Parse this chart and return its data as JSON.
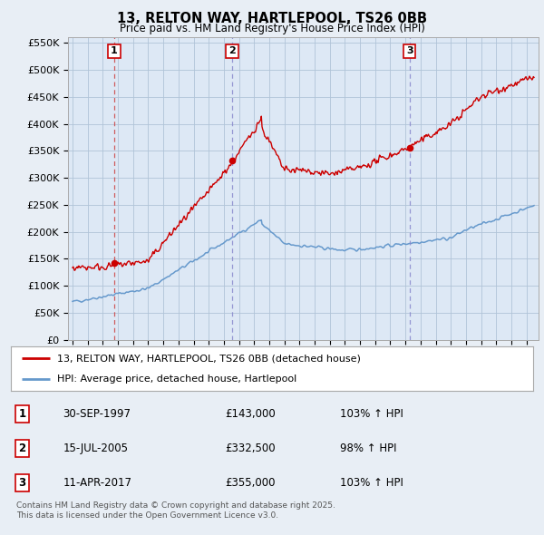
{
  "title_line1": "13, RELTON WAY, HARTLEPOOL, TS26 0BB",
  "title_line2": "Price paid vs. HM Land Registry's House Price Index (HPI)",
  "background_color": "#e8eef5",
  "plot_bg_color": "#dde8f5",
  "grid_color": "#b0c4d8",
  "sale_color": "#cc0000",
  "hpi_color": "#6699cc",
  "vline1_color": "#cc4444",
  "vline23_color": "#8888cc",
  "sales": [
    {
      "date_num": 1997.75,
      "price": 143000,
      "label": "1"
    },
    {
      "date_num": 2005.54,
      "price": 332500,
      "label": "2"
    },
    {
      "date_num": 2017.27,
      "price": 355000,
      "label": "3"
    }
  ],
  "legend_entries": [
    "13, RELTON WAY, HARTLEPOOL, TS26 0BB (detached house)",
    "HPI: Average price, detached house, Hartlepool"
  ],
  "table_rows": [
    {
      "num": "1",
      "date": "30-SEP-1997",
      "price": "£143,000",
      "hpi": "103% ↑ HPI"
    },
    {
      "num": "2",
      "date": "15-JUL-2005",
      "price": "£332,500",
      "hpi": "98% ↑ HPI"
    },
    {
      "num": "3",
      "date": "11-APR-2017",
      "price": "£355,000",
      "hpi": "103% ↑ HPI"
    }
  ],
  "footnote": "Contains HM Land Registry data © Crown copyright and database right 2025.\nThis data is licensed under the Open Government Licence v3.0.",
  "ylim": [
    0,
    560000
  ],
  "xlim": [
    1994.7,
    2025.8
  ],
  "yticks": [
    0,
    50000,
    100000,
    150000,
    200000,
    250000,
    300000,
    350000,
    400000,
    450000,
    500000,
    550000
  ],
  "xticks": [
    1995,
    1996,
    1997,
    1998,
    1999,
    2000,
    2001,
    2002,
    2003,
    2004,
    2005,
    2006,
    2007,
    2008,
    2009,
    2010,
    2011,
    2012,
    2013,
    2014,
    2015,
    2016,
    2017,
    2018,
    2019,
    2020,
    2021,
    2022,
    2023,
    2024,
    2025
  ]
}
